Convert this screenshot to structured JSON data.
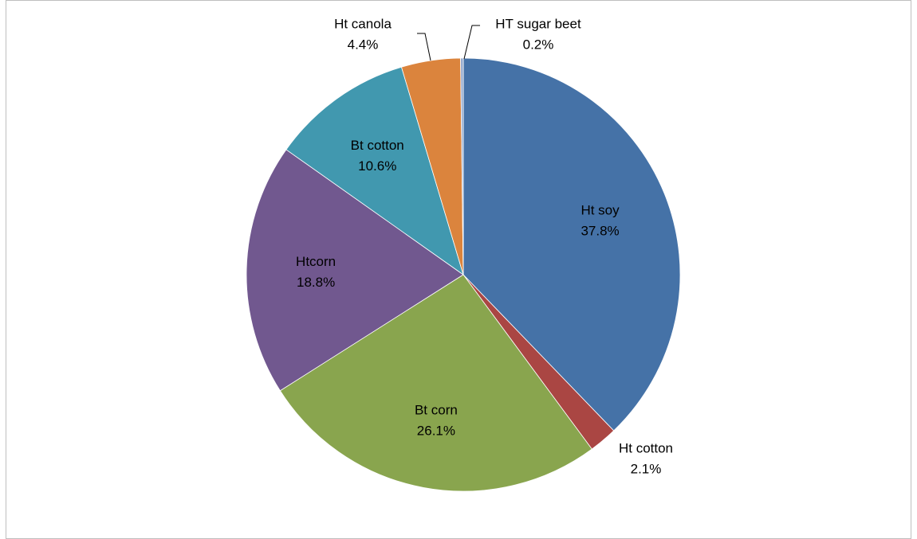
{
  "chart_data": {
    "type": "pie",
    "categories": [
      "Ht soy",
      "Ht cotton",
      "Bt corn",
      "Htcorn",
      "Bt cotton",
      "Ht canola",
      "HT sugar beet"
    ],
    "values": [
      37.8,
      2.1,
      26.1,
      18.8,
      10.6,
      4.4,
      0.2
    ],
    "value_labels": [
      "37.8%",
      "2.1%",
      "26.1%",
      "18.8%",
      "10.6%",
      "4.4%",
      "0.2%"
    ],
    "colors": [
      "#4572a7",
      "#aa4643",
      "#89a54e",
      "#71588f",
      "#4198af",
      "#db843d",
      "#93a9cf"
    ]
  }
}
